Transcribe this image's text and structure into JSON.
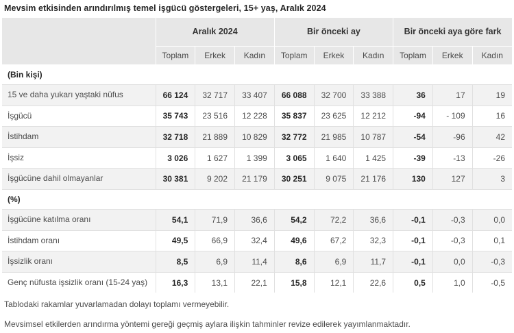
{
  "title": "Mevsim etkisinden arındırılmış temel işgücü göstergeleri, 15+ yaş, Aralık 2024",
  "table": {
    "col_groups": [
      "Aralık 2024",
      "Bir önceki ay",
      "Bir önceki aya göre fark"
    ],
    "sub_headers": [
      "Toplam",
      "Erkek",
      "Kadın"
    ],
    "sections": [
      {
        "label": "(Bin kişi)",
        "rows": [
          {
            "label": "15 ve daha yukarı yaştaki nüfus",
            "values": [
              "66 124",
              "32 717",
              "33 407",
              "66 088",
              "32 700",
              "33 388",
              "36",
              "17",
              "19"
            ]
          },
          {
            "label": "İşgücü",
            "values": [
              "35 743",
              "23 516",
              "12 228",
              "35 837",
              "23 625",
              "12 212",
              "-94",
              "- 109",
              "16"
            ]
          },
          {
            "label": "İstihdam",
            "values": [
              "32 718",
              "21 889",
              "10 829",
              "32 772",
              "21 985",
              "10 787",
              "-54",
              "-96",
              "42"
            ]
          },
          {
            "label": "İşsiz",
            "values": [
              "3 026",
              "1 627",
              "1 399",
              "3 065",
              "1 640",
              "1 425",
              "-39",
              "-13",
              "-26"
            ]
          },
          {
            "label": "İşgücüne dahil olmayanlar",
            "values": [
              "30 381",
              "9 202",
              "21 179",
              "30 251",
              "9 075",
              "21 176",
              "130",
              "127",
              "3"
            ]
          }
        ]
      },
      {
        "label": "(%)",
        "rows": [
          {
            "label": "İşgücüne katılma oranı",
            "values": [
              "54,1",
              "71,9",
              "36,6",
              "54,2",
              "72,2",
              "36,6",
              "-0,1",
              "-0,3",
              "0,0"
            ]
          },
          {
            "label": "İstihdam oranı",
            "values": [
              "49,5",
              "66,9",
              "32,4",
              "49,6",
              "67,2",
              "32,3",
              "-0,1",
              "-0,3",
              "0,1"
            ]
          },
          {
            "label": "İşsizlik oranı",
            "values": [
              "8,5",
              "6,9",
              "11,4",
              "8,6",
              "6,9",
              "11,7",
              "-0,1",
              "0,0",
              "-0,3"
            ]
          },
          {
            "label": "Genç nüfusta işsizlik oranı (15-24 yaş)",
            "values": [
              "16,3",
              "13,1",
              "22,1",
              "15,8",
              "12,1",
              "22,6",
              "0,5",
              "1,0",
              "-0,5"
            ]
          }
        ]
      }
    ]
  },
  "notes": [
    "Tablodaki rakamlar yuvarlamadan dolayı toplamı vermeyebilir.",
    "Mevsimsel etkilerden arındırma yöntemi gereği geçmiş aylara ilişkin tahminler revize edilerek yayımlanmaktadır."
  ],
  "colors": {
    "header_bg": "#e7e7e7",
    "stripe_bg": "#f2f2f2",
    "border": "#e0e0e0",
    "text": "#4d4d4d",
    "text_strong": "#262626"
  }
}
